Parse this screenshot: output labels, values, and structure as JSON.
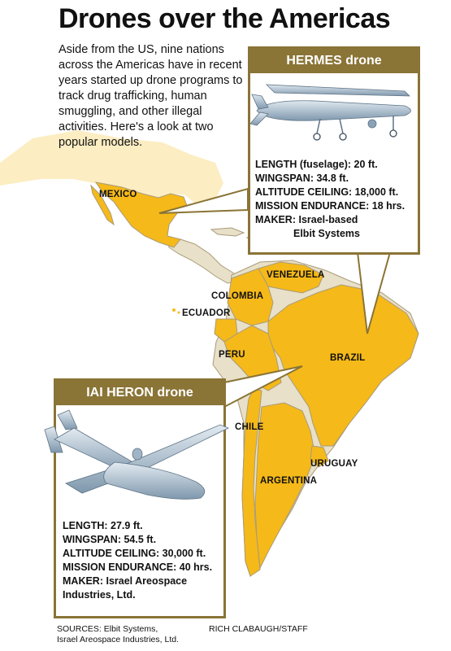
{
  "title": "Drones over the Americas",
  "intro": "Aside from the US, nine nations across the Americas have in recent years started up drone programs to track drug trafficking, human smuggling, and other illegal activities. Here's a look at two popular models.",
  "hermes": {
    "heading": "HERMES drone",
    "length": "LENGTH (fuselage): 20 ft.",
    "wingspan": "WINGSPAN: 34.8 ft.",
    "altitude": "ALTITUDE CEILING: 18,000 ft.",
    "endurance": "MISSION ENDURANCE: 18 hrs.",
    "maker_line1": "MAKER: Israel-based",
    "maker_line2": "Elbit Systems"
  },
  "heron": {
    "heading": "IAI HERON drone",
    "length": "LENGTH: 27.9 ft.",
    "wingspan": "WINGSPAN: 54.5 ft.",
    "altitude": "ALTITUDE CEILING: 30,000 ft.",
    "endurance": "MISSION ENDURANCE: 40 hrs.",
    "maker_line1": "MAKER: Israel Areospace",
    "maker_line2": "Industries, Ltd."
  },
  "countries": {
    "mexico": "MEXICO",
    "venezuela": "VENEZUELA",
    "colombia": "COLOMBIA",
    "ecuador": "ECUADOR",
    "peru": "PERU",
    "brazil": "BRAZIL",
    "chile": "CHILE",
    "uruguay": "URUGUAY",
    "argentina": "ARGENTINA"
  },
  "sources_line1": "SOURCES: Elbit Systems,",
  "sources_line2": "Israel Areospace Industries, Ltd.",
  "credit": "RICH CLABAUGH/STAFF",
  "colors": {
    "program_country": "#f5b919",
    "other_land": "#e8e0c8",
    "frame": "#8a7436",
    "drone_body": "#b9ccdb"
  },
  "icons": [
    "hermes-drone-icon",
    "heron-drone-icon"
  ]
}
